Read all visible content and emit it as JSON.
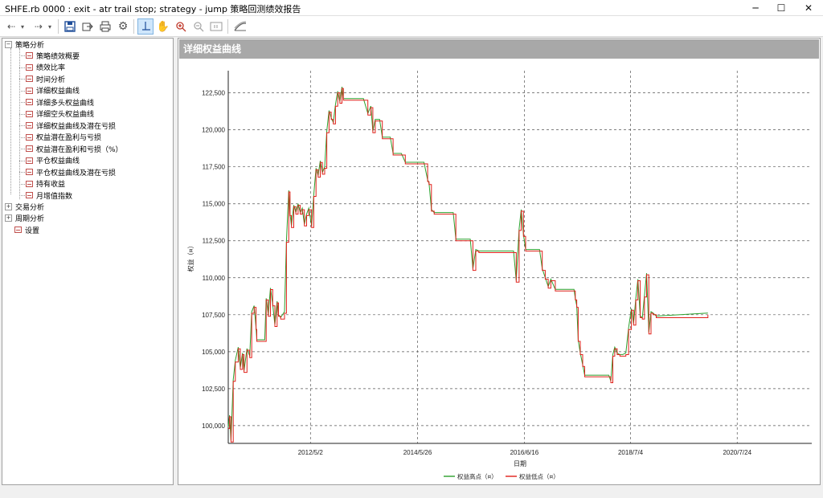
{
  "window": {
    "title": "SHFE.rb 0000 : exit - atr trail stop; strategy - jump 策略回测绩效报告"
  },
  "tree": {
    "root": "策略分析",
    "items": [
      "策略绩效概要",
      "绩效比率",
      "时间分析",
      "详细权益曲线",
      "详细多头权益曲线",
      "详细空头权益曲线",
      "详细权益曲线及潜在亏损",
      "权益潜在盈利与亏损",
      "权益潜在盈利和亏损（%）",
      "平仓权益曲线",
      "平仓权益曲线及潜在亏损",
      "持有收益",
      "月增值指数"
    ],
    "groups": [
      "交易分析",
      "周期分析"
    ],
    "settings": "设置"
  },
  "panel": {
    "header": "详细权益曲线"
  },
  "chart_data": {
    "type": "line",
    "ylabel": "权益（¤）",
    "xlabel": "日期",
    "ylim": [
      98800,
      124000
    ],
    "yticks": [
      100000,
      102500,
      105000,
      107500,
      110000,
      112500,
      115000,
      117500,
      120000,
      122500
    ],
    "ytick_labels": [
      "100,000",
      "102,500",
      "105,000",
      "107,500",
      "110,000",
      "112,500",
      "115,000",
      "117,500",
      "120,000",
      "122,500"
    ],
    "x_start": "2010-10-01",
    "x_end": "2021-12-31",
    "xticks": [
      "2012-05-02",
      "2014-05-26",
      "2016-06-16",
      "2018-07-04",
      "2020-07-24"
    ],
    "xtick_labels": [
      "2012/5/2",
      "2014/5/26",
      "2016/6/16",
      "2018/7/4",
      "2020/7/24"
    ],
    "series": [
      {
        "name": "权益高点（¤）",
        "color": "#2ca02c"
      },
      {
        "name": "权益低点（¤）",
        "color": "#e0201a"
      }
    ],
    "points": [
      [
        "2010-10-01",
        99800
      ],
      [
        "2010-10-10",
        100600
      ],
      [
        "2010-10-20",
        98900
      ],
      [
        "2010-11-05",
        103000
      ],
      [
        "2010-11-20",
        104300
      ],
      [
        "2010-12-10",
        105200
      ],
      [
        "2010-12-25",
        103800
      ],
      [
        "2011-01-10",
        104800
      ],
      [
        "2011-01-20",
        103600
      ],
      [
        "2011-02-10",
        105100
      ],
      [
        "2011-03-01",
        104600
      ],
      [
        "2011-03-15",
        107600
      ],
      [
        "2011-04-01",
        108000
      ],
      [
        "2011-04-15",
        106500
      ],
      [
        "2011-04-20",
        105700
      ],
      [
        "2011-06-15",
        105700
      ],
      [
        "2011-06-25",
        108500
      ],
      [
        "2011-07-10",
        107400
      ],
      [
        "2011-07-25",
        109200
      ],
      [
        "2011-08-10",
        108100
      ],
      [
        "2011-08-25",
        106700
      ],
      [
        "2011-09-10",
        108300
      ],
      [
        "2011-09-20",
        107400
      ],
      [
        "2011-10-05",
        107200
      ],
      [
        "2011-11-01",
        107600
      ],
      [
        "2011-11-15",
        112400
      ],
      [
        "2011-12-01",
        115800
      ],
      [
        "2011-12-10",
        114200
      ],
      [
        "2011-12-20",
        113400
      ],
      [
        "2012-01-05",
        114800
      ],
      [
        "2012-01-20",
        114300
      ],
      [
        "2012-02-05",
        114900
      ],
      [
        "2012-02-20",
        114300
      ],
      [
        "2012-03-05",
        114600
      ],
      [
        "2012-03-20",
        113500
      ],
      [
        "2012-04-05",
        114200
      ],
      [
        "2012-04-20",
        114600
      ],
      [
        "2012-05-10",
        113400
      ],
      [
        "2012-05-25",
        115500
      ],
      [
        "2012-06-10",
        117300
      ],
      [
        "2012-06-25",
        116800
      ],
      [
        "2012-07-10",
        117800
      ],
      [
        "2012-07-25",
        117000
      ],
      [
        "2012-08-10",
        117400
      ],
      [
        "2012-08-25",
        119800
      ],
      [
        "2012-09-10",
        121200
      ],
      [
        "2012-09-25",
        120700
      ],
      [
        "2012-10-10",
        120400
      ],
      [
        "2012-10-25",
        121600
      ],
      [
        "2012-11-10",
        122500
      ],
      [
        "2012-11-25",
        121800
      ],
      [
        "2012-12-10",
        122800
      ],
      [
        "2012-12-20",
        122000
      ],
      [
        "2013-02-01",
        122000
      ],
      [
        "2013-04-01",
        122000
      ],
      [
        "2013-05-10",
        122000
      ],
      [
        "2013-06-10",
        121000
      ],
      [
        "2013-07-01",
        121500
      ],
      [
        "2013-07-15",
        119800
      ],
      [
        "2013-08-01",
        120600
      ],
      [
        "2013-09-01",
        120600
      ],
      [
        "2013-09-20",
        119400
      ],
      [
        "2013-11-15",
        119400
      ],
      [
        "2013-12-05",
        118300
      ],
      [
        "2014-02-01",
        118300
      ],
      [
        "2014-03-01",
        117700
      ],
      [
        "2014-05-01",
        117700
      ],
      [
        "2014-06-10",
        117700
      ],
      [
        "2014-07-10",
        117700
      ],
      [
        "2014-08-05",
        116500
      ],
      [
        "2014-08-15",
        116300
      ],
      [
        "2014-09-01",
        114500
      ],
      [
        "2014-09-20",
        114300
      ],
      [
        "2015-01-01",
        114300
      ],
      [
        "2015-02-01",
        114300
      ],
      [
        "2015-02-20",
        112500
      ],
      [
        "2015-06-01",
        112500
      ],
      [
        "2015-06-20",
        110500
      ],
      [
        "2015-07-10",
        111800
      ],
      [
        "2015-08-01",
        111700
      ],
      [
        "2016-03-01",
        111700
      ],
      [
        "2016-04-01",
        111700
      ],
      [
        "2016-04-20",
        109700
      ],
      [
        "2016-05-10",
        113200
      ],
      [
        "2016-05-25",
        114500
      ],
      [
        "2016-06-10",
        112800
      ],
      [
        "2016-06-25",
        111800
      ],
      [
        "2016-10-01",
        111800
      ],
      [
        "2016-10-20",
        110500
      ],
      [
        "2016-11-10",
        109900
      ],
      [
        "2016-12-01",
        109300
      ],
      [
        "2016-12-20",
        109800
      ],
      [
        "2017-01-20",
        109100
      ],
      [
        "2017-06-01",
        109100
      ],
      [
        "2017-06-10",
        108500
      ],
      [
        "2017-06-20",
        108000
      ],
      [
        "2017-06-30",
        105700
      ],
      [
        "2017-07-15",
        104800
      ],
      [
        "2017-08-01",
        104000
      ],
      [
        "2017-08-15",
        103300
      ],
      [
        "2018-02-01",
        103300
      ],
      [
        "2018-02-15",
        102900
      ],
      [
        "2018-03-01",
        104700
      ],
      [
        "2018-03-15",
        105200
      ],
      [
        "2018-04-01",
        104800
      ],
      [
        "2018-04-20",
        104700
      ],
      [
        "2018-05-10",
        104700
      ],
      [
        "2018-06-01",
        104800
      ],
      [
        "2018-06-20",
        106500
      ],
      [
        "2018-07-10",
        107800
      ],
      [
        "2018-07-25",
        106800
      ],
      [
        "2018-08-10",
        108500
      ],
      [
        "2018-08-25",
        109800
      ],
      [
        "2018-09-10",
        107300
      ],
      [
        "2018-09-25",
        107200
      ],
      [
        "2018-10-10",
        108700
      ],
      [
        "2018-10-25",
        110200
      ],
      [
        "2018-11-10",
        106200
      ],
      [
        "2018-11-25",
        107600
      ],
      [
        "2018-12-10",
        107500
      ],
      [
        "2019-01-01",
        107300
      ],
      [
        "2019-12-31",
        107500
      ]
    ]
  }
}
